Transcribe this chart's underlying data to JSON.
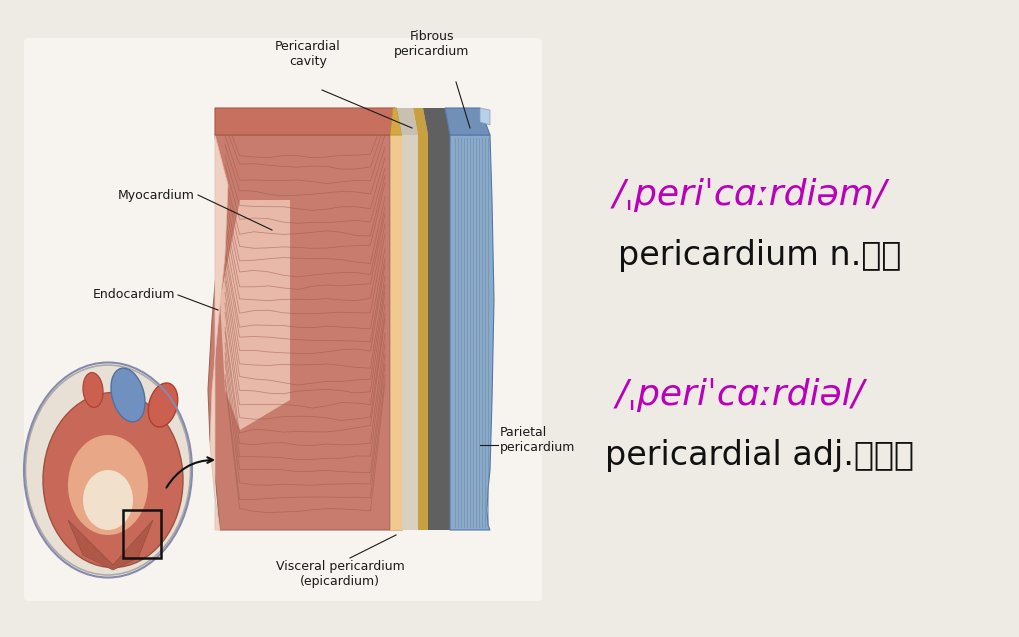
{
  "bg_color": "#eeeae4",
  "left_panel_bg": "#f7f4ef",
  "phonetic1": "/ˌperiˈcɑːrdiəm/",
  "word1": "pericardium n.心包",
  "phonetic2": "/ˌperiˈcɑːrdiəl/",
  "word2": "pericardial adj.心包的",
  "phonetic_color": "#bb00bb",
  "word_color": "#111111",
  "phonetic_fontsize": 26,
  "word_fontsize": 24,
  "label_fontsize": 9,
  "label_color": "#1a1a1a",
  "myocardium_color": "#c87c6e",
  "myocardium_light": "#e8a898",
  "fibrous_color": "#8aaac8",
  "fibrous_stripe": "#6688aa",
  "dark_layer_color": "#666060",
  "yellow_layer_color": "#c8a850",
  "heart_red": "#c05048",
  "heart_blue": "#6080b0",
  "heart_pink": "#d09080"
}
